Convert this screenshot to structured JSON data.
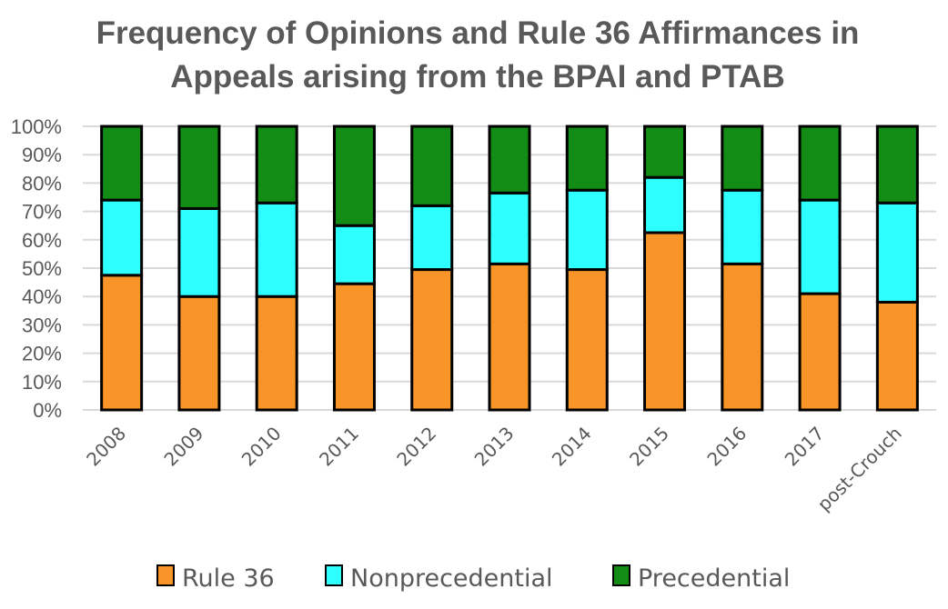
{
  "chart_data": {
    "type": "bar",
    "stacked": true,
    "title": "Frequency of Opinions and Rule 36 Affirmances in Appeals arising from the BPAI and PTAB",
    "title_lines": [
      "Frequency of Opinions and Rule 36 Affirmances in",
      "Appeals arising from the BPAI and PTAB"
    ],
    "xlabel": "",
    "ylabel": "",
    "categories": [
      "2008",
      "2009",
      "2010",
      "2011",
      "2012",
      "2013",
      "2014",
      "2015",
      "2016",
      "2017",
      "post-Crouch"
    ],
    "ylim": [
      0,
      100
    ],
    "yticks": [
      "0%",
      "10%",
      "20%",
      "30%",
      "40%",
      "50%",
      "60%",
      "70%",
      "80%",
      "90%",
      "100%"
    ],
    "grid": true,
    "legend_position": "bottom",
    "series": [
      {
        "name": "Rule 36",
        "color": "#F99429",
        "values": [
          47.5,
          40,
          40,
          44.5,
          49.5,
          51.5,
          49.5,
          62.5,
          51.5,
          41,
          38
        ]
      },
      {
        "name": "Nonprecedential",
        "color": "#2EFFFF",
        "values": [
          26.5,
          31,
          33,
          20.5,
          22.5,
          25,
          28,
          19.5,
          26,
          33,
          35
        ]
      },
      {
        "name": "Precedential",
        "color": "#138C15",
        "values": [
          26,
          29,
          27,
          35,
          28,
          23.5,
          22.5,
          18,
          22.5,
          26,
          27
        ]
      }
    ]
  }
}
